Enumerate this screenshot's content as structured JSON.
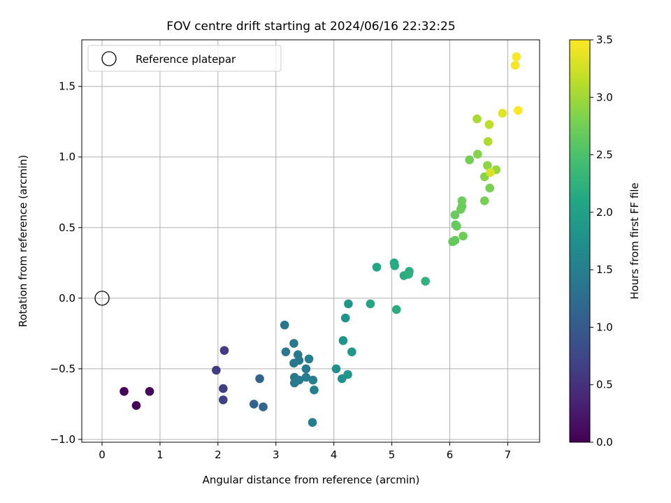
{
  "chart_data": {
    "type": "scatter",
    "title": "FOV centre drift starting at 2024/06/16 22:32:25",
    "xlabel": "Angular distance from reference (arcmin)",
    "ylabel": "Rotation from reference (arcmin)",
    "xlim": [
      -0.35,
      7.55
    ],
    "ylim": [
      -1.02,
      1.83
    ],
    "xticks": [
      0,
      1,
      2,
      3,
      4,
      5,
      6,
      7
    ],
    "yticks": [
      -1.0,
      -0.5,
      0.0,
      0.5,
      1.0,
      1.5
    ],
    "grid": true,
    "legend": {
      "placement": "top-left",
      "entries": [
        "Reference platepar"
      ]
    },
    "reference": {
      "x": 0.0,
      "y": 0.0
    },
    "colorbar": {
      "label": "Hours from first FF file",
      "colormap": "viridis",
      "range": [
        0.0,
        3.5
      ],
      "ticks": [
        0.0,
        0.5,
        1.0,
        1.5,
        2.0,
        2.5,
        3.0,
        3.5
      ]
    },
    "points": [
      {
        "x": 0.38,
        "y": -0.66,
        "t": 0.02
      },
      {
        "x": 0.59,
        "y": -0.76,
        "t": 0.05
      },
      {
        "x": 0.82,
        "y": -0.66,
        "t": 0.08
      },
      {
        "x": 1.97,
        "y": -0.51,
        "t": 0.6
      },
      {
        "x": 2.11,
        "y": -0.37,
        "t": 0.62
      },
      {
        "x": 2.09,
        "y": -0.64,
        "t": 0.65
      },
      {
        "x": 2.09,
        "y": -0.72,
        "t": 0.67
      },
      {
        "x": 2.62,
        "y": -0.75,
        "t": 1.1
      },
      {
        "x": 2.72,
        "y": -0.57,
        "t": 1.12
      },
      {
        "x": 2.78,
        "y": -0.77,
        "t": 1.14
      },
      {
        "x": 3.15,
        "y": -0.19,
        "t": 1.35
      },
      {
        "x": 3.17,
        "y": -0.38,
        "t": 1.37
      },
      {
        "x": 3.31,
        "y": -0.32,
        "t": 1.38
      },
      {
        "x": 3.31,
        "y": -0.46,
        "t": 1.39
      },
      {
        "x": 3.38,
        "y": -0.4,
        "t": 1.4
      },
      {
        "x": 3.4,
        "y": -0.44,
        "t": 1.41
      },
      {
        "x": 3.32,
        "y": -0.56,
        "t": 1.42
      },
      {
        "x": 3.32,
        "y": -0.6,
        "t": 1.43
      },
      {
        "x": 3.4,
        "y": -0.58,
        "t": 1.44
      },
      {
        "x": 3.52,
        "y": -0.5,
        "t": 1.45
      },
      {
        "x": 3.52,
        "y": -0.56,
        "t": 1.46
      },
      {
        "x": 3.57,
        "y": -0.43,
        "t": 1.47
      },
      {
        "x": 3.63,
        "y": -0.88,
        "t": 1.48
      },
      {
        "x": 3.64,
        "y": -0.58,
        "t": 1.49
      },
      {
        "x": 3.66,
        "y": -0.65,
        "t": 1.5
      },
      {
        "x": 4.04,
        "y": -0.5,
        "t": 1.75
      },
      {
        "x": 4.14,
        "y": -0.57,
        "t": 1.77
      },
      {
        "x": 4.16,
        "y": -0.3,
        "t": 1.79
      },
      {
        "x": 4.2,
        "y": -0.14,
        "t": 1.81
      },
      {
        "x": 4.25,
        "y": -0.04,
        "t": 1.83
      },
      {
        "x": 4.24,
        "y": -0.54,
        "t": 1.85
      },
      {
        "x": 4.31,
        "y": -0.38,
        "t": 1.87
      },
      {
        "x": 4.63,
        "y": -0.04,
        "t": 2.05
      },
      {
        "x": 4.74,
        "y": 0.22,
        "t": 2.1
      },
      {
        "x": 5.04,
        "y": 0.25,
        "t": 2.15
      },
      {
        "x": 5.05,
        "y": 0.23,
        "t": 2.16
      },
      {
        "x": 5.08,
        "y": -0.08,
        "t": 2.17
      },
      {
        "x": 5.21,
        "y": 0.16,
        "t": 2.18
      },
      {
        "x": 5.3,
        "y": 0.19,
        "t": 2.19
      },
      {
        "x": 5.29,
        "y": 0.17,
        "t": 2.2
      },
      {
        "x": 5.58,
        "y": 0.12,
        "t": 2.25
      },
      {
        "x": 6.05,
        "y": 0.4,
        "t": 2.65
      },
      {
        "x": 6.09,
        "y": 0.41,
        "t": 2.66
      },
      {
        "x": 6.1,
        "y": 0.52,
        "t": 2.67
      },
      {
        "x": 6.12,
        "y": 0.51,
        "t": 2.68
      },
      {
        "x": 6.09,
        "y": 0.59,
        "t": 2.69
      },
      {
        "x": 6.19,
        "y": 0.63,
        "t": 2.7
      },
      {
        "x": 6.21,
        "y": 0.65,
        "t": 2.71
      },
      {
        "x": 6.21,
        "y": 0.69,
        "t": 2.72
      },
      {
        "x": 6.23,
        "y": 0.44,
        "t": 2.73
      },
      {
        "x": 6.34,
        "y": 0.98,
        "t": 2.75
      },
      {
        "x": 6.6,
        "y": 0.69,
        "t": 2.78
      },
      {
        "x": 6.48,
        "y": 1.02,
        "t": 2.85
      },
      {
        "x": 6.6,
        "y": 0.86,
        "t": 2.87
      },
      {
        "x": 6.65,
        "y": 0.94,
        "t": 2.9
      },
      {
        "x": 6.69,
        "y": 0.78,
        "t": 2.8
      },
      {
        "x": 6.8,
        "y": 0.91,
        "t": 2.95
      },
      {
        "x": 6.47,
        "y": 1.27,
        "t": 3.05
      },
      {
        "x": 6.66,
        "y": 1.11,
        "t": 3.08
      },
      {
        "x": 6.68,
        "y": 1.23,
        "t": 3.15
      },
      {
        "x": 6.7,
        "y": 0.89,
        "t": 3.3
      },
      {
        "x": 6.91,
        "y": 1.31,
        "t": 3.35
      },
      {
        "x": 7.13,
        "y": 1.65,
        "t": 3.45
      },
      {
        "x": 7.15,
        "y": 1.71,
        "t": 3.48
      },
      {
        "x": 7.18,
        "y": 1.33,
        "t": 3.5
      }
    ]
  }
}
